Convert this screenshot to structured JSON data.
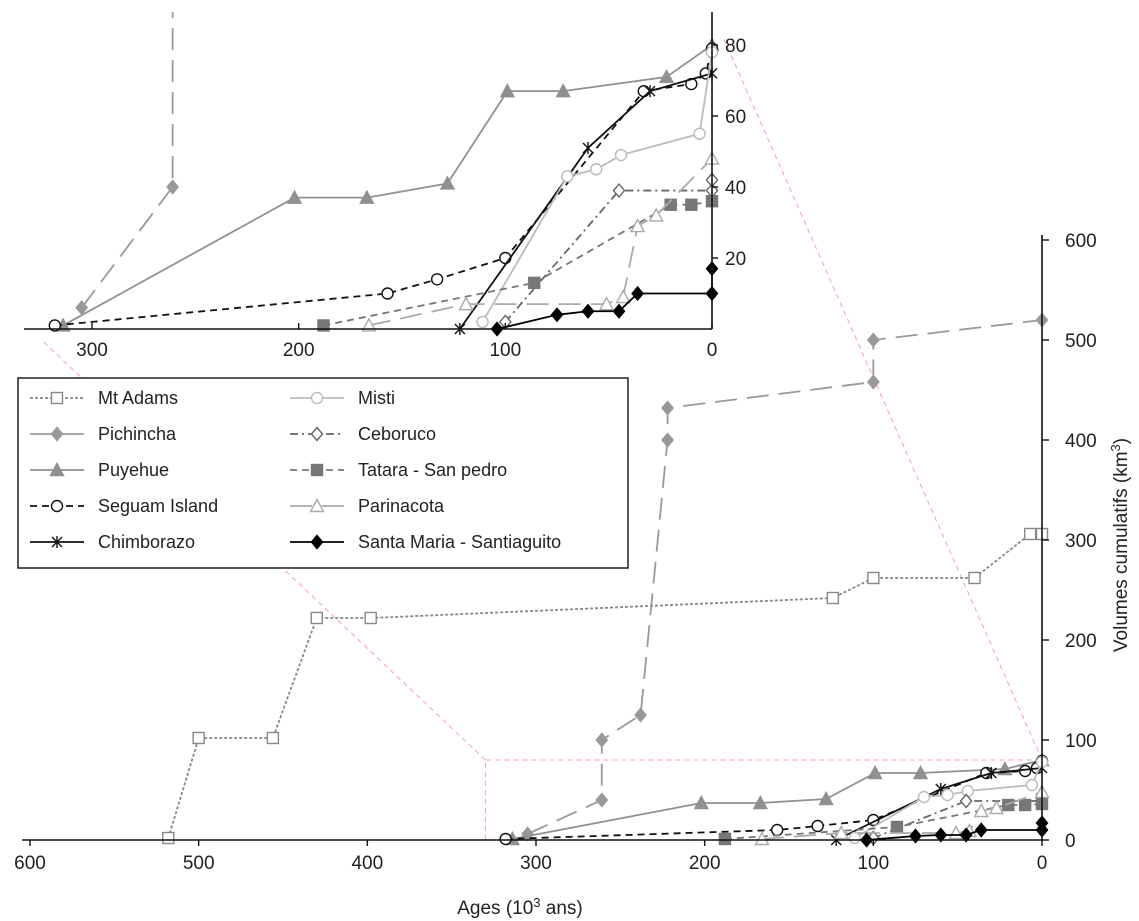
{
  "chart_data": [
    {
      "id": "main",
      "type": "line",
      "xlabel": "Ages (10",
      "xlabel_sup": "3",
      "xlabel_tail": " ans)",
      "ylabel": "Volumes cumulatifs (km",
      "ylabel_sup": "3",
      "ylabel_tail": ")",
      "xlim": [
        600,
        0
      ],
      "ylim": [
        0,
        600
      ],
      "x_ticks": [
        "600",
        "500",
        "400",
        "300",
        "200",
        "100",
        "0"
      ],
      "y_ticks": [
        "0",
        "100",
        "200",
        "300",
        "400",
        "500",
        "600"
      ],
      "series": [
        {
          "name": "Mt Adams",
          "color": "#888888",
          "marker": "square-open",
          "dash": "dotted",
          "points": [
            [
              518,
              2
            ],
            [
              500,
              102
            ],
            [
              456,
              102
            ],
            [
              430,
              222
            ],
            [
              398,
              222
            ],
            [
              124,
              242
            ],
            [
              100,
              262
            ],
            [
              40,
              262
            ],
            [
              7,
              306
            ],
            [
              0,
              306
            ]
          ]
        },
        {
          "name": "Pichincha",
          "color": "#999999",
          "marker": "diamond-filled",
          "dash": "longdash",
          "points": [
            [
              305,
              6
            ],
            [
              261,
              40
            ],
            [
              261,
              100
            ],
            [
              238,
              125
            ],
            [
              222,
              400
            ],
            [
              222,
              432
            ],
            [
              100,
              458
            ],
            [
              100,
              500
            ],
            [
              0,
              520
            ]
          ]
        },
        {
          "name": "Puyehue",
          "color": "#909090",
          "marker": "triangle-filled",
          "dash": "solid",
          "points": [
            [
              314,
              1
            ],
            [
              202,
              37
            ],
            [
              167,
              37
            ],
            [
              128,
              41
            ],
            [
              99,
              67
            ],
            [
              72,
              67
            ],
            [
              22,
              71
            ],
            [
              0,
              80
            ]
          ]
        },
        {
          "name": "Seguam Island",
          "color": "#111111",
          "marker": "circle-open",
          "dash": "dashed",
          "points": [
            [
              318,
              1
            ],
            [
              157,
              10
            ],
            [
              133,
              14
            ],
            [
              100,
              20
            ],
            [
              33,
              67
            ],
            [
              10,
              69
            ],
            [
              3,
              72
            ],
            [
              0,
              79
            ]
          ]
        },
        {
          "name": "Chimborazo",
          "color": "#111111",
          "marker": "star",
          "dash": "solid",
          "points": [
            [
              122,
              0
            ],
            [
              60,
              51
            ],
            [
              30,
              67
            ],
            [
              0,
              72
            ]
          ]
        },
        {
          "name": "Misti",
          "color": "#bbbbbb",
          "marker": "circle-open",
          "dash": "solid",
          "points": [
            [
              111,
              2
            ],
            [
              70,
              43
            ],
            [
              56,
              45
            ],
            [
              44,
              49
            ],
            [
              6,
              55
            ],
            [
              0,
              78
            ]
          ]
        },
        {
          "name": "Ceboruco",
          "color": "#666666",
          "marker": "diamond-open",
          "dash": "dashdot",
          "points": [
            [
              100,
              2
            ],
            [
              45,
              39
            ],
            [
              0,
              39
            ],
            [
              0,
              42
            ]
          ]
        },
        {
          "name": "Tatara - San pedro",
          "color": "#777777",
          "marker": "square-filled",
          "dash": "dashed",
          "points": [
            [
              188,
              1
            ],
            [
              86,
              13
            ],
            [
              20,
              35
            ],
            [
              10,
              35
            ],
            [
              0,
              36
            ]
          ]
        },
        {
          "name": "Parinacota",
          "color": "#aaaaaa",
          "marker": "triangle-open",
          "dash": "longdash",
          "points": [
            [
              166,
              1
            ],
            [
              119,
              7
            ],
            [
              51,
              7
            ],
            [
              43,
              9
            ],
            [
              36,
              29
            ],
            [
              27,
              32
            ],
            [
              0,
              48
            ]
          ]
        },
        {
          "name": "Santa Maria - Santiaguito",
          "color": "#000000",
          "marker": "diamond-filled",
          "dash": "solid",
          "points": [
            [
              104,
              0
            ],
            [
              75,
              4
            ],
            [
              60,
              5
            ],
            [
              45,
              5
            ],
            [
              36,
              10
            ],
            [
              0,
              10
            ],
            [
              0,
              17
            ]
          ]
        }
      ]
    },
    {
      "id": "inset",
      "type": "line",
      "xlim": [
        330,
        0
      ],
      "ylim": [
        0,
        80
      ],
      "x_ticks": [
        "300",
        "200",
        "100",
        "0"
      ],
      "y_ticks": [
        "20",
        "40",
        "60",
        "80"
      ],
      "zoom_of": "main"
    }
  ]
}
